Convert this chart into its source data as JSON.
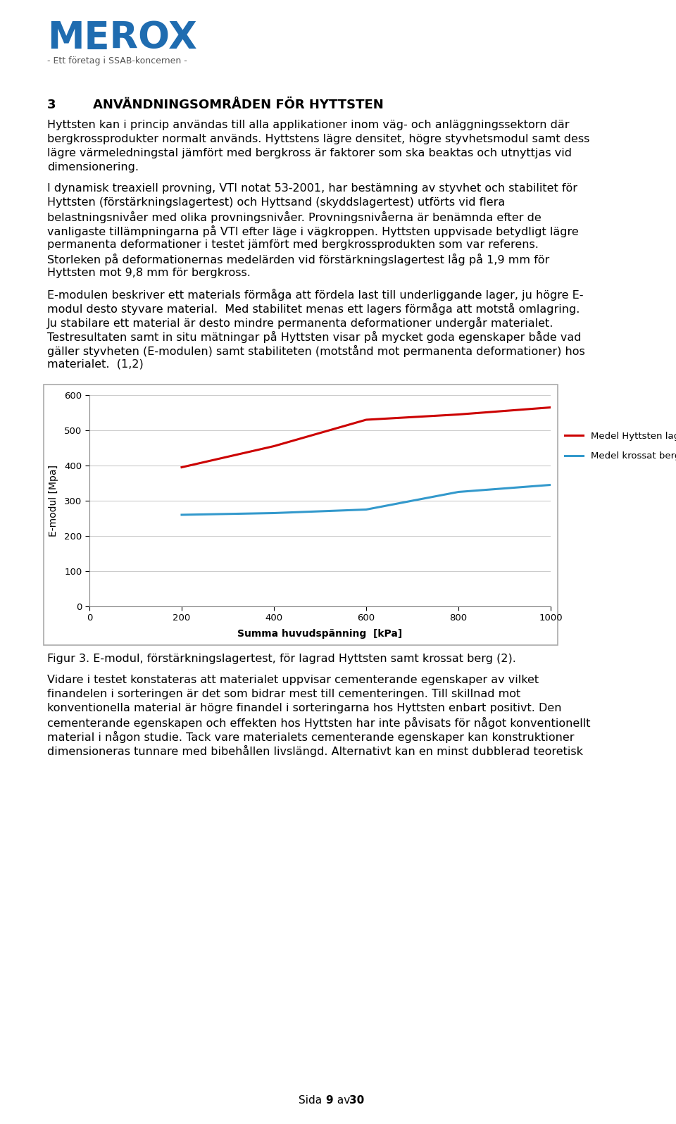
{
  "logo_text": "MEROX",
  "logo_subtitle": "- Ett företag i SSAB-koncernen -",
  "logo_color": "#1F6CB0",
  "section_number": "3",
  "section_title": "ANVÄNDNINGSOMRÅDEN FÖR HYTTSTEN",
  "para1_lines": [
    "Hyttsten kan i princip användas till alla applikationer inom väg- och anläggningssektorn där",
    "bergkrossprodukter normalt används. Hyttstens lägre densitet, högre styvhetsmodul samt dess",
    "lägre värmeledningstal jämfört med bergkross är faktorer som ska beaktas och utnyttjas vid",
    "dimensionering."
  ],
  "para2_lines": [
    "I dynamisk treaxiell provning, VTI notat 53-2001, har bestämning av styvhet och stabilitet för",
    "Hyttsten (förstärkningslagertest) och Hyttsand (skyddslagertest) utförts vid flera",
    "belastningsnivåer med olika provningsnivåer. Provningsnivåerna är benämnda efter de",
    "vanligaste tillämpningarna på VTI efter läge i vägkroppen. Hyttsten uppvisade betydligt lägre",
    "permanenta deformationer i testet jämfört med bergkrossprodukten som var referens.",
    "Storleken på deformationernas medelärden vid förstärkningslagertest låg på 1,9 mm för",
    "Hyttsten mot 9,8 mm för bergkross."
  ],
  "para3_lines": [
    "E-modulen beskriver ett materials förmåga att fördela last till underliggande lager, ju högre E-",
    "modul desto styvare material.  Med stabilitet menas ett lagers förmåga att motstå omlagring.",
    "Ju stabilare ett material är desto mindre permanenta deformationer undergår materialet.",
    "Testresultaten samt in situ mätningar på Hyttsten visar på mycket goda egenskaper både vad",
    "gäller styvheten (E-modulen) samt stabiliteten (motstånd mot permanenta deformationer) hos",
    "materialet.  (1,2)"
  ],
  "chart_x_hyttsten": [
    200,
    400,
    600,
    800,
    1000
  ],
  "chart_y_hyttsten": [
    395,
    455,
    530,
    545,
    565
  ],
  "chart_x_krossat": [
    200,
    400,
    600,
    800,
    1000
  ],
  "chart_y_krossat": [
    260,
    265,
    275,
    325,
    345
  ],
  "chart_color_hyttsten": "#CC0000",
  "chart_color_krossat": "#3399CC",
  "chart_xlabel": "Summa huvudspänning  [kPa]",
  "chart_ylabel": "E-modul [Mpa]",
  "chart_xlim": [
    0,
    1000
  ],
  "chart_ylim": [
    0,
    600
  ],
  "chart_xticks": [
    0,
    200,
    400,
    600,
    800,
    1000
  ],
  "chart_yticks": [
    0,
    100,
    200,
    300,
    400,
    500,
    600
  ],
  "legend_hyttsten": "Medel Hyttsten lagrad",
  "legend_krossat": "Medel krossat berg",
  "fig_caption": "Figur 3. E-modul, förstärkningslagertest, för lagrad Hyttsten samt krossat berg (2).",
  "para4_lines": [
    "Vidare i testet konstateras att materialet uppvisar cementerande egenskaper av vilket",
    "finandelen i sorteringen är det som bidrar mest till cementeringen. Till skillnad mot",
    "konventionella material är högre finandel i sorteringarna hos Hyttsten enbart positivt. Den",
    "cementerande egenskapen och effekten hos Hyttsten har inte påvisats för något konventionellt",
    "material i någon studie. Tack vare materialets cementerande egenskaper kan konstruktioner",
    "dimensioneras tunnare med bibehållen livslängd. Alternativt kan en minst dubblerad teoretisk"
  ],
  "background_color": "#FFFFFF",
  "text_color": "#000000"
}
